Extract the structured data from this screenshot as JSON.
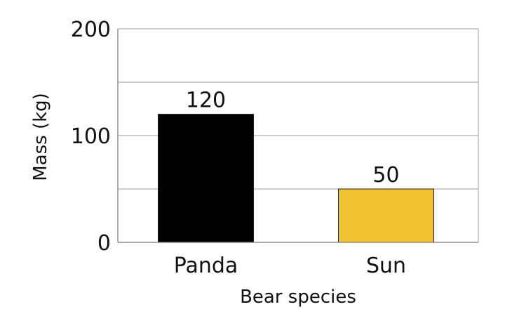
{
  "chart_data": {
    "type": "bar",
    "categories": [
      "Panda",
      "Sun"
    ],
    "values": [
      120,
      50
    ],
    "data_labels": [
      "120",
      "50"
    ],
    "colors": [
      "#000000",
      "#f0c232"
    ],
    "xlabel": "Bear species",
    "ylabel": "Mass (kg)",
    "ylim": [
      0,
      200
    ],
    "yticks": [
      0,
      100,
      200
    ],
    "gridlines": [
      0,
      50,
      100,
      150,
      200
    ],
    "grid": true,
    "legend": "none"
  }
}
